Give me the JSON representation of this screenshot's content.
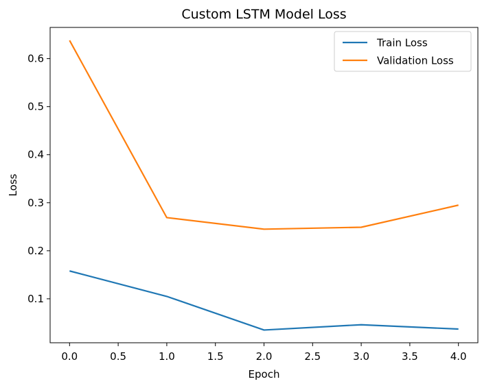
{
  "chart_data": {
    "type": "line",
    "title": "Custom LSTM Model Loss",
    "xlabel": "Epoch",
    "ylabel": "Loss",
    "x": [
      0,
      1,
      2,
      3,
      4
    ],
    "xlim": [
      -0.2,
      4.2
    ],
    "ylim": [
      0.0085,
      0.665
    ],
    "xticks": [
      0.0,
      0.5,
      1.0,
      1.5,
      2.0,
      2.5,
      3.0,
      3.5,
      4.0
    ],
    "xtick_labels": [
      "0.0",
      "0.5",
      "1.0",
      "1.5",
      "2.0",
      "2.5",
      "3.0",
      "3.5",
      "4.0"
    ],
    "yticks": [
      0.1,
      0.2,
      0.3,
      0.4,
      0.5,
      0.6
    ],
    "ytick_labels": [
      "0.1",
      "0.2",
      "0.3",
      "0.4",
      "0.5",
      "0.6"
    ],
    "grid": false,
    "legend_position": "top-right",
    "series": [
      {
        "name": "Train Loss",
        "color": "#1f77b4",
        "values": [
          0.158,
          0.105,
          0.035,
          0.046,
          0.037
        ]
      },
      {
        "name": "Validation Loss",
        "color": "#ff7f0e",
        "values": [
          0.638,
          0.269,
          0.245,
          0.249,
          0.295
        ]
      }
    ]
  }
}
